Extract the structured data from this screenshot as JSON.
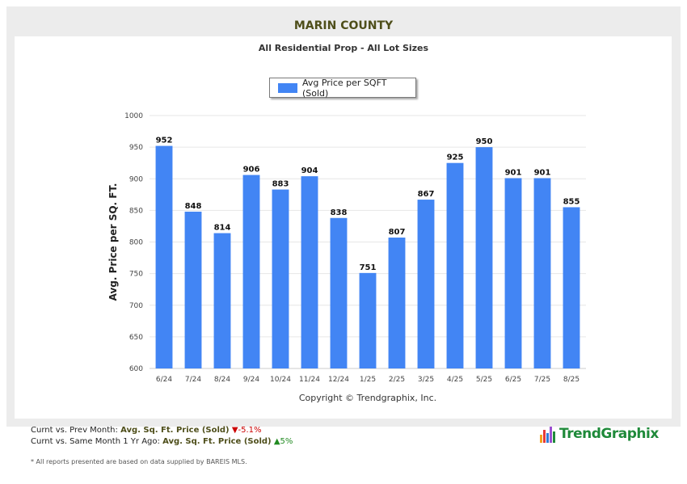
{
  "header": {
    "title": "MARIN COUNTY",
    "subtitle": "All Residential Prop - All Lot Sizes"
  },
  "chart_data": {
    "type": "bar",
    "categories": [
      "6/24",
      "7/24",
      "8/24",
      "9/24",
      "10/24",
      "11/24",
      "12/24",
      "1/25",
      "2/25",
      "3/25",
      "4/25",
      "5/25",
      "6/25",
      "7/25",
      "8/25"
    ],
    "series": [
      {
        "name": "Avg Price per SQFT (Sold)",
        "values": [
          952,
          848,
          814,
          906,
          883,
          904,
          838,
          751,
          807,
          867,
          925,
          950,
          901,
          901,
          855
        ]
      }
    ],
    "ylabel": "Avg. Price per SQ. FT.",
    "xlabel": "",
    "ylim": [
      600,
      1000
    ],
    "yticks": [
      600,
      650,
      700,
      750,
      800,
      850,
      900,
      950,
      1000
    ],
    "grid": true,
    "legend_position": "top-center",
    "bar_color": "#4285f4",
    "copyright": "Copyright © Trendgraphix, Inc."
  },
  "footer": {
    "line1_prefix": "Curnt vs. Prev Month:",
    "line1_metric": "Avg. Sq. Ft. Price (Sold)",
    "line1_arrow": "▼",
    "line1_change": "-5.1%",
    "line2_prefix": "Curnt vs. Same Month 1 Yr Ago:",
    "line2_metric": "Avg. Sq. Ft. Price (Sold)",
    "line2_arrow": "▲",
    "line2_change": "5%",
    "disclaimer": "* All reports presented are based on data supplied by BAREIS MLS."
  },
  "logo": {
    "brand": "TrendGraphix"
  }
}
